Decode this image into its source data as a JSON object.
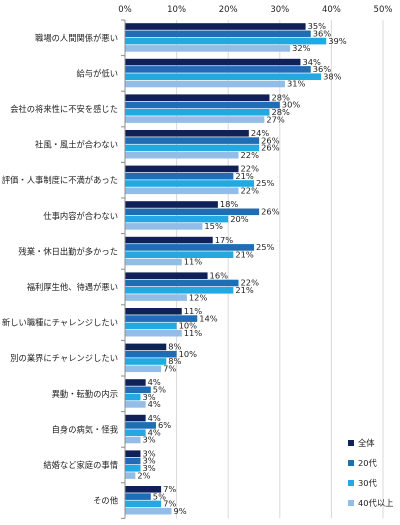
{
  "chart_data": {
    "type": "bar",
    "orientation": "horizontal",
    "xlim": [
      0,
      50
    ],
    "ticks": [
      0,
      10,
      20,
      30,
      40,
      50
    ],
    "tick_suffix": "%",
    "value_suffix": "%",
    "grid": true,
    "legend_position": "bottom-right",
    "categories": [
      "職場の人間関係が悪い",
      "給与が低い",
      "会社の将来性に不安を感じた",
      "社風・風土が合わない",
      "評価・人事制度に不満があった",
      "仕事内容が合わない",
      "残業・休日出勤が多かった",
      "福利厚生他、待遇が悪い",
      "新しい職種にチャレンジしたい",
      "別の業界にチャレンジしたい",
      "異動・転勤の内示",
      "自身の病気・怪我",
      "結婚など家庭の事情",
      "その他"
    ],
    "series": [
      {
        "name": "全体",
        "color": "#0f2158",
        "values": [
          35,
          34,
          28,
          24,
          22,
          18,
          17,
          16,
          11,
          8,
          4,
          4,
          3,
          7
        ]
      },
      {
        "name": "20代",
        "color": "#1f6db5",
        "values": [
          36,
          36,
          30,
          26,
          21,
          26,
          25,
          22,
          14,
          10,
          5,
          6,
          3,
          5
        ]
      },
      {
        "name": "30代",
        "color": "#23a9e1",
        "values": [
          39,
          38,
          28,
          26,
          25,
          20,
          21,
          21,
          10,
          8,
          3,
          4,
          3,
          7
        ]
      },
      {
        "name": "40代以上",
        "color": "#93bde6",
        "values": [
          32,
          31,
          27,
          22,
          22,
          15,
          11,
          12,
          11,
          7,
          4,
          3,
          2,
          9
        ]
      }
    ]
  }
}
